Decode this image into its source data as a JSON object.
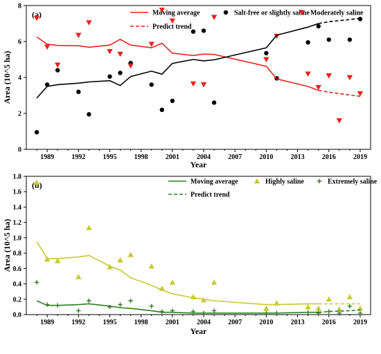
{
  "chart_data": [
    {
      "type": "line+scatter",
      "panel_label": "(a)",
      "title": "",
      "xlabel": "Year",
      "ylabel": "Area (10^5 ha)",
      "xlim": [
        1987,
        2020
      ],
      "ylim": [
        0,
        8
      ],
      "xticks": [
        1989,
        1992,
        1995,
        1998,
        2001,
        2004,
        2007,
        2010,
        2013,
        2016,
        2019
      ],
      "yticks": [
        0,
        2,
        4,
        6,
        8
      ],
      "grid": false,
      "legend_placement": "top-right",
      "colors": {
        "moving_average_red": "#e8231a",
        "moving_average_black": "#000000",
        "salt_free": "#000000",
        "moderately": "#e8231a"
      },
      "legend": [
        {
          "label": "Moving average",
          "kind": "line",
          "color": "#e8231a"
        },
        {
          "label": "Salt-free or slightly saline",
          "kind": "circle",
          "color": "#000000"
        },
        {
          "label": "Moderately saline",
          "kind": "triangle-down",
          "color": "#e8231a"
        },
        {
          "label": "Predict trend",
          "kind": "dashed",
          "color": "#e8231a"
        }
      ],
      "series": [
        {
          "kind": "circle",
          "color": "#000000",
          "points": [
            [
              1988,
              0.95
            ],
            [
              1989,
              3.6
            ],
            [
              1990,
              4.4
            ],
            [
              1992,
              3.2
            ],
            [
              1993,
              1.95
            ],
            [
              1995,
              4.05
            ],
            [
              1996,
              4.25
            ],
            [
              1997,
              4.8
            ],
            [
              1999,
              3.6
            ],
            [
              2000,
              2.2
            ],
            [
              2001,
              2.7
            ],
            [
              2003,
              6.55
            ],
            [
              2004,
              6.6
            ],
            [
              2005,
              2.6
            ],
            [
              2010,
              5.35
            ],
            [
              2011,
              3.95
            ],
            [
              2014,
              5.95
            ],
            [
              2015,
              6.85
            ],
            [
              2016,
              6.1
            ],
            [
              2018,
              6.1
            ],
            [
              2019,
              7.25
            ]
          ]
        },
        {
          "kind": "triangle-down",
          "color": "#e8231a",
          "points": [
            [
              1988,
              7.3
            ],
            [
              1989,
              5.7
            ],
            [
              1990,
              4.7
            ],
            [
              1992,
              6.35
            ],
            [
              1993,
              7.05
            ],
            [
              1995,
              5.45
            ],
            [
              1996,
              5.3
            ],
            [
              1997,
              4.65
            ],
            [
              1999,
              5.85
            ],
            [
              2000,
              7.75
            ],
            [
              2001,
              7.15
            ],
            [
              2003,
              3.65
            ],
            [
              2004,
              3.6
            ],
            [
              2005,
              7.35
            ],
            [
              2010,
              5.0
            ],
            [
              2011,
              6.3
            ],
            [
              2014,
              4.2
            ],
            [
              2015,
              3.45
            ],
            [
              2016,
              4.1
            ],
            [
              2017,
              1.6
            ],
            [
              2018,
              4.0
            ],
            [
              2019,
              3.1
            ]
          ]
        },
        {
          "kind": "line",
          "color": "#e8231a",
          "points": [
            [
              1988,
              6.25
            ],
            [
              1989,
              5.85
            ],
            [
              1990,
              5.78
            ],
            [
              1992,
              5.76
            ],
            [
              1993,
              5.68
            ],
            [
              1995,
              5.8
            ],
            [
              1996,
              6.12
            ],
            [
              1997,
              5.8
            ],
            [
              1999,
              5.65
            ],
            [
              2000,
              5.9
            ],
            [
              2001,
              5.35
            ],
            [
              2003,
              5.22
            ],
            [
              2004,
              5.3
            ],
            [
              2005,
              5.28
            ],
            [
              2010,
              4.62
            ],
            [
              2011,
              3.92
            ],
            [
              2014,
              3.5
            ],
            [
              2015,
              3.28
            ]
          ]
        },
        {
          "kind": "dashed",
          "color": "#e8231a",
          "points": [
            [
              2015,
              3.28
            ],
            [
              2016,
              3.18
            ],
            [
              2018,
              3.02
            ],
            [
              2019,
              2.95
            ]
          ]
        },
        {
          "kind": "line",
          "color": "#000000",
          "points": [
            [
              1988,
              2.85
            ],
            [
              1989,
              3.5
            ],
            [
              1990,
              3.6
            ],
            [
              1992,
              3.68
            ],
            [
              1993,
              3.75
            ],
            [
              1995,
              3.82
            ],
            [
              1996,
              3.55
            ],
            [
              1997,
              4.05
            ],
            [
              1999,
              4.35
            ],
            [
              2000,
              4.18
            ],
            [
              2001,
              4.78
            ],
            [
              2003,
              5.0
            ],
            [
              2004,
              4.92
            ],
            [
              2005,
              4.98
            ],
            [
              2010,
              5.65
            ],
            [
              2011,
              6.35
            ],
            [
              2014,
              6.8
            ],
            [
              2015,
              7.0
            ]
          ]
        },
        {
          "kind": "dashed",
          "color": "#000000",
          "points": [
            [
              2015,
              7.0
            ],
            [
              2016,
              7.1
            ],
            [
              2018,
              7.22
            ],
            [
              2019,
              7.3
            ]
          ]
        }
      ]
    },
    {
      "type": "line+scatter",
      "panel_label": "(b)",
      "title": "",
      "xlabel": "Year",
      "ylabel": "Area (10^5 ha)",
      "xlim": [
        1987,
        2020
      ],
      "ylim": [
        0,
        1.8
      ],
      "xticks": [
        1989,
        1992,
        1995,
        1998,
        2001,
        2004,
        2007,
        2010,
        2013,
        2016,
        2019
      ],
      "yticks": [
        0.0,
        0.2,
        0.4,
        0.6,
        0.8,
        1.0,
        1.2,
        1.4,
        1.6,
        1.8
      ],
      "grid": false,
      "legend_placement": "top-right",
      "colors": {
        "moving_average_green": "#2e7d1f",
        "moving_average_yellow": "#c8c832",
        "highly": "#c8c832",
        "extremely": "#2e7d1f"
      },
      "legend": [
        {
          "label": "Moving average",
          "kind": "line",
          "color": "#2e7d1f"
        },
        {
          "label": "Highly saline",
          "kind": "triangle-up",
          "color": "#c8c832"
        },
        {
          "label": "Extremely saline",
          "kind": "plus",
          "color": "#2e7d1f"
        },
        {
          "label": "Predict trend",
          "kind": "dashed",
          "color": "#2e7d1f"
        }
      ],
      "series": [
        {
          "kind": "triangle-up",
          "color": "#c8c832",
          "points": [
            [
              1988,
              1.72
            ],
            [
              1989,
              0.72
            ],
            [
              1990,
              0.7
            ],
            [
              1992,
              0.49
            ],
            [
              1993,
              1.13
            ],
            [
              1995,
              0.62
            ],
            [
              1996,
              0.71
            ],
            [
              1997,
              0.78
            ],
            [
              1999,
              0.63
            ],
            [
              2000,
              0.34
            ],
            [
              2001,
              0.42
            ],
            [
              2003,
              0.23
            ],
            [
              2004,
              0.19
            ],
            [
              2005,
              0.42
            ],
            [
              2010,
              0.08
            ],
            [
              2011,
              0.15
            ],
            [
              2014,
              0.1
            ],
            [
              2015,
              0.08
            ],
            [
              2016,
              0.2
            ],
            [
              2017,
              0.07
            ],
            [
              2018,
              0.23
            ],
            [
              2019,
              0.08
            ]
          ]
        },
        {
          "kind": "plus",
          "color": "#2e7d1f",
          "points": [
            [
              1988,
              0.42
            ],
            [
              1989,
              0.13
            ],
            [
              1990,
              0.12
            ],
            [
              1992,
              0.05
            ],
            [
              1993,
              0.18
            ],
            [
              1995,
              0.1
            ],
            [
              1996,
              0.13
            ],
            [
              1997,
              0.18
            ],
            [
              1999,
              0.11
            ],
            [
              2000,
              0.04
            ],
            [
              2001,
              0.05
            ],
            [
              2003,
              0.04
            ],
            [
              2004,
              0.02
            ],
            [
              2005,
              0.05
            ],
            [
              2010,
              0.02
            ],
            [
              2011,
              0.02
            ],
            [
              2014,
              0.03
            ],
            [
              2015,
              0.02
            ],
            [
              2016,
              0.04
            ],
            [
              2017,
              0.02
            ],
            [
              2018,
              0.11
            ],
            [
              2019,
              0.02
            ]
          ]
        },
        {
          "kind": "line",
          "color": "#c8c832",
          "points": [
            [
              1988,
              0.95
            ],
            [
              1989,
              0.73
            ],
            [
              1990,
              0.73
            ],
            [
              1992,
              0.75
            ],
            [
              1993,
              0.77
            ],
            [
              1995,
              0.63
            ],
            [
              1996,
              0.58
            ],
            [
              1997,
              0.48
            ],
            [
              1999,
              0.38
            ],
            [
              2000,
              0.32
            ],
            [
              2001,
              0.27
            ],
            [
              2003,
              0.22
            ],
            [
              2004,
              0.2
            ],
            [
              2005,
              0.18
            ],
            [
              2010,
              0.13
            ],
            [
              2011,
              0.13
            ],
            [
              2014,
              0.14
            ],
            [
              2015,
              0.14
            ]
          ]
        },
        {
          "kind": "dashed",
          "color": "#c8c832",
          "points": [
            [
              2015,
              0.14
            ],
            [
              2016,
              0.14
            ],
            [
              2018,
              0.14
            ],
            [
              2019,
              0.14
            ]
          ]
        },
        {
          "kind": "line",
          "color": "#2e7d1f",
          "points": [
            [
              1988,
              0.18
            ],
            [
              1989,
              0.12
            ],
            [
              1990,
              0.12
            ],
            [
              1992,
              0.13
            ],
            [
              1993,
              0.14
            ],
            [
              1995,
              0.11
            ],
            [
              1996,
              0.09
            ],
            [
              1997,
              0.08
            ],
            [
              1999,
              0.05
            ],
            [
              2000,
              0.03
            ],
            [
              2001,
              0.03
            ],
            [
              2003,
              0.02
            ],
            [
              2004,
              0.02
            ],
            [
              2005,
              0.02
            ],
            [
              2010,
              0.02
            ],
            [
              2011,
              0.02
            ],
            [
              2014,
              0.03
            ],
            [
              2015,
              0.03
            ]
          ]
        },
        {
          "kind": "dashed",
          "color": "#2e7d1f",
          "points": [
            [
              2015,
              0.03
            ],
            [
              2016,
              0.04
            ],
            [
              2018,
              0.05
            ],
            [
              2019,
              0.06
            ]
          ]
        }
      ]
    }
  ]
}
